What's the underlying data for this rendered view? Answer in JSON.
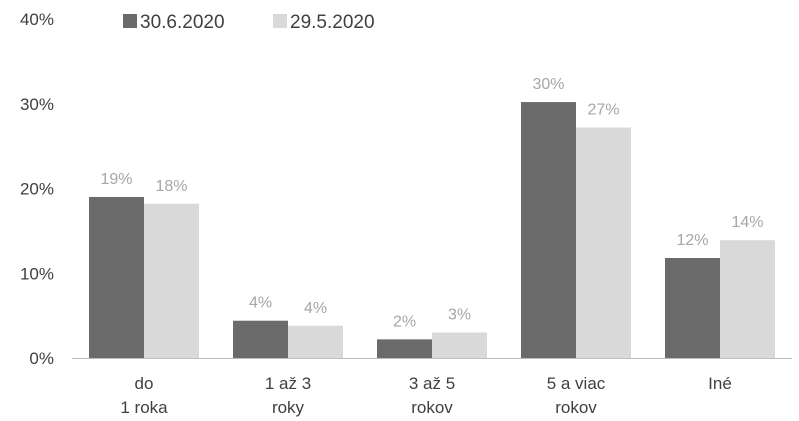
{
  "chart_data": {
    "type": "bar",
    "title": "",
    "xlabel": "",
    "ylabel": "",
    "ylim": [
      0,
      40
    ],
    "yticks": [
      0,
      10,
      20,
      30,
      40
    ],
    "ytick_labels": [
      "0%",
      "10%",
      "20%",
      "30%",
      "40%"
    ],
    "grid": false,
    "legend_position": "top-left",
    "categories": [
      [
        "do",
        "1 roka"
      ],
      [
        "1 až 3",
        "roky"
      ],
      [
        "3 až 5",
        "rokov"
      ],
      [
        "5 a viac",
        "rokov"
      ],
      [
        "Iné"
      ]
    ],
    "series": [
      {
        "name": "30.6.2020",
        "color": "#6b6b6b",
        "values": [
          19,
          4.4,
          2.2,
          30.2,
          11.8
        ],
        "labels": [
          "19%",
          "4%",
          "2%",
          "30%",
          "12%"
        ]
      },
      {
        "name": "29.5.2020",
        "color": "#d9d9d9",
        "values": [
          18.2,
          3.8,
          3.0,
          27.2,
          13.9
        ],
        "labels": [
          "18%",
          "4%",
          "3%",
          "27%",
          "14%"
        ]
      }
    ]
  }
}
